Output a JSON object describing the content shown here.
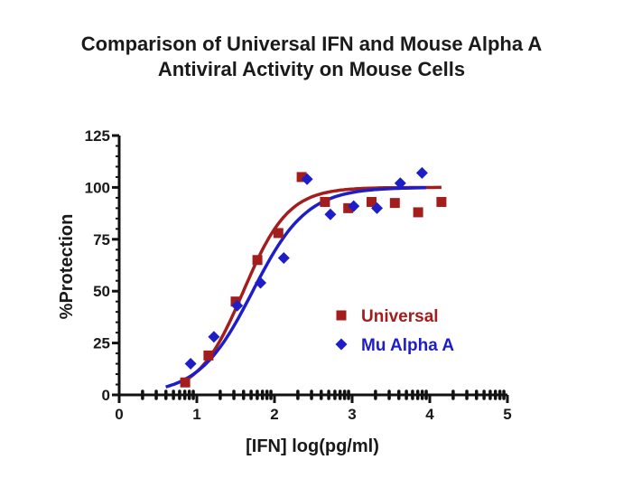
{
  "chart_data": {
    "type": "scatter",
    "title_lines": [
      "Comparison of Universal IFN and Mouse Alpha A",
      "Antiviral Activity on Mouse Cells"
    ],
    "xlabel": "[IFN] log(pg/ml)",
    "ylabel": "%Protection",
    "xlim": [
      0,
      5
    ],
    "ylim": [
      0,
      125
    ],
    "x_ticks": [
      0,
      1,
      2,
      3,
      4,
      5
    ],
    "y_ticks": [
      0,
      25,
      50,
      75,
      100,
      125
    ],
    "x_tick_labels": [
      "0",
      "1",
      "2",
      "3",
      "4",
      "5"
    ],
    "y_tick_labels": [
      "0",
      "25",
      "50",
      "75",
      "100",
      "125"
    ],
    "x_minor_log": true,
    "grid": false,
    "legend_position": "middle-right",
    "series": [
      {
        "name": "Universal",
        "marker": "square",
        "color": "#a31d1d",
        "points": [
          [
            0.85,
            6
          ],
          [
            1.15,
            19
          ],
          [
            1.5,
            45
          ],
          [
            1.78,
            65
          ],
          [
            2.05,
            78
          ],
          [
            2.35,
            105
          ],
          [
            2.65,
            93
          ],
          [
            2.95,
            90
          ],
          [
            3.25,
            93
          ],
          [
            3.55,
            92.5
          ],
          [
            3.85,
            88
          ],
          [
            4.15,
            93
          ]
        ],
        "fit": {
          "bottom": 0,
          "top": 100,
          "logEC50": 1.6,
          "hill": 1.5,
          "x_range": [
            0.85,
            4.15
          ]
        }
      },
      {
        "name": "Mu Alpha A",
        "marker": "diamond",
        "color": "#1e1ec8",
        "points": [
          [
            0.92,
            15
          ],
          [
            1.22,
            28
          ],
          [
            1.52,
            43
          ],
          [
            1.82,
            54
          ],
          [
            2.12,
            66
          ],
          [
            2.42,
            104
          ],
          [
            2.72,
            87
          ],
          [
            3.02,
            91
          ],
          [
            3.32,
            90
          ],
          [
            3.62,
            102
          ],
          [
            3.9,
            107
          ]
        ],
        "fit": {
          "bottom": 0,
          "top": 100,
          "logEC50": 1.72,
          "hill": 1.25,
          "x_range": [
            0.6,
            3.95
          ]
        }
      }
    ]
  }
}
